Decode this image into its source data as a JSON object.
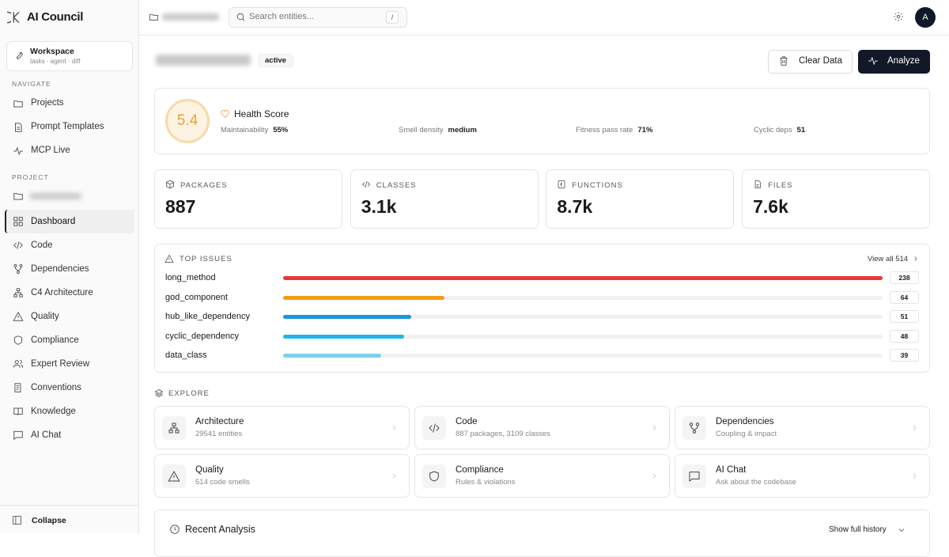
{
  "sidebar": {
    "brand": "AI Council",
    "workspace": {
      "title": "Workspace",
      "subtitle": "tasks · agent · diff"
    },
    "navigate_label": "NAVIGATE",
    "navigate": [
      "Projects",
      "Prompt Templates",
      "MCP Live"
    ],
    "project_label": "PROJECT",
    "project": [
      "Dashboard",
      "Code",
      "Dependencies",
      "C4 Architecture",
      "Quality",
      "Compliance",
      "Expert Review",
      "Conventions",
      "Knowledge",
      "AI Chat"
    ],
    "collapse": "Collapse"
  },
  "header": {
    "search_placeholder": "Search entities...",
    "shortcut": "/",
    "avatar": "A"
  },
  "page": {
    "status": "active",
    "actions": [
      "Clear Data",
      "Analyze"
    ]
  },
  "health": {
    "score": "5.4",
    "title": "Health Score",
    "metrics": [
      {
        "label": "Maintainability",
        "value": "55%"
      },
      {
        "label": "Smell density",
        "value": "medium"
      },
      {
        "label": "Fitness pass rate",
        "value": "71%"
      },
      {
        "label": "Cyclic deps",
        "value": "51"
      }
    ]
  },
  "stats": [
    {
      "label": "PACKAGES",
      "value": "887"
    },
    {
      "label": "CLASSES",
      "value": "3.1k"
    },
    {
      "label": "FUNCTIONS",
      "value": "8.7k"
    },
    {
      "label": "FILES",
      "value": "7.6k"
    }
  ],
  "top_issues": {
    "title": "TOP ISSUES",
    "view_all": "View all 514",
    "issues": [
      {
        "name": "long_method",
        "count": 238,
        "color": "#e53935"
      },
      {
        "name": "god_component",
        "count": 64,
        "color": "#f29d12"
      },
      {
        "name": "hub_like_dependency",
        "count": 51,
        "color": "#1a96dc"
      },
      {
        "name": "cyclic_dependency",
        "count": 48,
        "color": "#20b4ea"
      },
      {
        "name": "data_class",
        "count": 39,
        "color": "#7fd0f0"
      }
    ]
  },
  "explore": {
    "title": "EXPLORE",
    "cards": [
      {
        "title": "Architecture",
        "subtitle": "29541 entities"
      },
      {
        "title": "Code",
        "subtitle": "887 packages, 3109 classes"
      },
      {
        "title": "Dependencies",
        "subtitle": "Coupling & impact"
      },
      {
        "title": "Quality",
        "subtitle": "514 code smells"
      },
      {
        "title": "Compliance",
        "subtitle": "Rules & violations"
      },
      {
        "title": "AI Chat",
        "subtitle": "Ask about the codebase"
      }
    ]
  },
  "recent": {
    "title": "Recent Analysis",
    "toggle": "Show full history"
  }
}
